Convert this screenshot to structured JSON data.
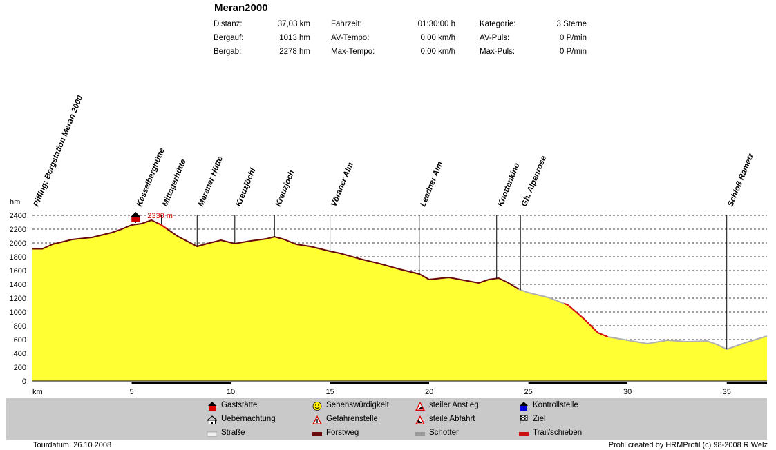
{
  "title": "Meran2000",
  "stats": {
    "col1": [
      {
        "label": "Distanz:",
        "value": "37,03 km"
      },
      {
        "label": "Bergauf:",
        "value": "1013 hm"
      },
      {
        "label": "Bergab:",
        "value": "2278 hm"
      }
    ],
    "col2": [
      {
        "label": "Fahrzeit:",
        "value": "01:30:00 h"
      },
      {
        "label": "AV-Tempo:",
        "value": "0,00 km/h"
      },
      {
        "label": "Max-Tempo:",
        "value": "0,00 km/h"
      }
    ],
    "col3": [
      {
        "label": "Kategorie:",
        "value": "3 Sterne"
      },
      {
        "label": "AV-Puls:",
        "value": "0 P/min"
      },
      {
        "label": "Max-Puls:",
        "value": "0 P/min"
      }
    ]
  },
  "chart_data": {
    "type": "area",
    "xlabel": "km",
    "ylabel": "hm",
    "xlim": [
      0,
      37.03
    ],
    "ylim": [
      0,
      2400
    ],
    "xticks": [
      5,
      10,
      15,
      20,
      25,
      30,
      35
    ],
    "yticks": [
      0,
      200,
      400,
      600,
      800,
      1000,
      1200,
      1400,
      1600,
      1800,
      2000,
      2200,
      2400
    ],
    "grid": "horizontal dashed",
    "fill_color": "#ffff33",
    "max_label": "2330 m",
    "max_point": {
      "x": 6.0,
      "y": 2330
    },
    "profile": [
      {
        "x": 0.0,
        "y": 1915
      },
      {
        "x": 0.5,
        "y": 1915
      },
      {
        "x": 1.0,
        "y": 1980
      },
      {
        "x": 2.0,
        "y": 2050
      },
      {
        "x": 3.0,
        "y": 2080
      },
      {
        "x": 4.0,
        "y": 2150
      },
      {
        "x": 4.5,
        "y": 2200
      },
      {
        "x": 5.0,
        "y": 2260
      },
      {
        "x": 5.5,
        "y": 2280
      },
      {
        "x": 6.0,
        "y": 2330
      },
      {
        "x": 6.5,
        "y": 2260
      },
      {
        "x": 7.3,
        "y": 2100
      },
      {
        "x": 8.3,
        "y": 1950
      },
      {
        "x": 8.8,
        "y": 1990
      },
      {
        "x": 9.5,
        "y": 2040
      },
      {
        "x": 10.2,
        "y": 1990
      },
      {
        "x": 11.0,
        "y": 2030
      },
      {
        "x": 11.8,
        "y": 2060
      },
      {
        "x": 12.2,
        "y": 2090
      },
      {
        "x": 12.7,
        "y": 2050
      },
      {
        "x": 13.3,
        "y": 1980
      },
      {
        "x": 14.0,
        "y": 1950
      },
      {
        "x": 15.0,
        "y": 1880
      },
      {
        "x": 15.5,
        "y": 1850
      },
      {
        "x": 16.5,
        "y": 1770
      },
      {
        "x": 17.5,
        "y": 1700
      },
      {
        "x": 18.5,
        "y": 1620
      },
      {
        "x": 19.5,
        "y": 1550
      },
      {
        "x": 20.0,
        "y": 1470
      },
      {
        "x": 21.0,
        "y": 1500
      },
      {
        "x": 22.5,
        "y": 1420
      },
      {
        "x": 23.0,
        "y": 1470
      },
      {
        "x": 23.5,
        "y": 1490
      },
      {
        "x": 24.0,
        "y": 1420
      },
      {
        "x": 24.5,
        "y": 1330
      },
      {
        "x": 25.0,
        "y": 1280
      },
      {
        "x": 26.0,
        "y": 1210
      },
      {
        "x": 27.0,
        "y": 1100
      },
      {
        "x": 27.8,
        "y": 900
      },
      {
        "x": 28.5,
        "y": 700
      },
      {
        "x": 29.0,
        "y": 640
      },
      {
        "x": 30.0,
        "y": 590
      },
      {
        "x": 31.0,
        "y": 540
      },
      {
        "x": 32.0,
        "y": 590
      },
      {
        "x": 33.0,
        "y": 570
      },
      {
        "x": 34.0,
        "y": 580
      },
      {
        "x": 34.5,
        "y": 530
      },
      {
        "x": 35.0,
        "y": 460
      },
      {
        "x": 36.0,
        "y": 560
      },
      {
        "x": 37.03,
        "y": 650
      }
    ],
    "dark_segments": [
      [
        0,
        24.5
      ],
      [
        26.8,
        29.0
      ]
    ],
    "red_segments": [
      [
        6.3,
        6.8
      ],
      [
        26.8,
        29.0
      ]
    ],
    "waypoints": [
      {
        "x": 0.0,
        "y": 1915,
        "label": "Piffing: Bergstation  Meran 2000"
      },
      {
        "x": 5.2,
        "y": 2290,
        "label": "Kesselberghütte"
      },
      {
        "x": 6.5,
        "y": 2270,
        "label": "Mittagerhütte"
      },
      {
        "x": 8.3,
        "y": 1960,
        "label": "Meraner Hütte"
      },
      {
        "x": 10.2,
        "y": 1995,
        "label": "Kreuzjöchl"
      },
      {
        "x": 12.2,
        "y": 2090,
        "label": "Kreuzjoch"
      },
      {
        "x": 15.0,
        "y": 1875,
        "label": "Vöraner Alm"
      },
      {
        "x": 19.5,
        "y": 1545,
        "label": "Leadner Alm"
      },
      {
        "x": 23.4,
        "y": 1485,
        "label": "Knottenkino"
      },
      {
        "x": 24.6,
        "y": 1320,
        "label": "Gh. Alpenrose"
      },
      {
        "x": 35.0,
        "y": 460,
        "label": "Schloß Rametz"
      }
    ]
  },
  "legend": [
    {
      "label": "Gaststätte",
      "icon": "house-red-icon"
    },
    {
      "label": "Sehenswürdigkeit",
      "icon": "smiley-icon"
    },
    {
      "label": "steiler Anstieg",
      "icon": "warning-climb-icon"
    },
    {
      "label": "Kontrollstelle",
      "icon": "house-blue-icon"
    },
    {
      "label": "Uebernachtung",
      "icon": "hut-icon"
    },
    {
      "label": "Gefahrenstelle",
      "icon": "warning-icon"
    },
    {
      "label": "steile Abfahrt",
      "icon": "warning-descent-icon"
    },
    {
      "label": "Ziel",
      "icon": "checkered-flag-icon"
    },
    {
      "label": "Straße",
      "icon": "road-swatch-icon",
      "color": "#f0f0f0"
    },
    {
      "label": "Forstweg",
      "icon": "forest-road-swatch-icon",
      "color": "#6b0a0a"
    },
    {
      "label": "Schotter",
      "icon": "gravel-swatch-icon",
      "color": "#9a9a9a"
    },
    {
      "label": "Trail/schieben",
      "icon": "trail-swatch-icon",
      "color": "#cc1111"
    }
  ],
  "footer": {
    "date": "Tourdatum: 26.10.2008",
    "credit": "Profil created by HRMProfil (c) 98-2008 R.Welz"
  }
}
